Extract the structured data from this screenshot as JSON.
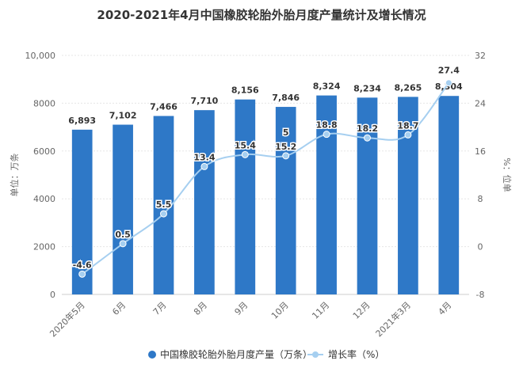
{
  "chart_data": {
    "type": "bar",
    "title": "2020-2021年4月中国橡胶轮胎外胎月度产量统计及增长情况",
    "categories": [
      "2020年5月",
      "6月",
      "7月",
      "8月",
      "9月",
      "10月",
      "11月",
      "12月",
      "2021年3月",
      "4月"
    ],
    "series": [
      {
        "name": "中国橡胶轮胎外胎月度产量（万条）",
        "type": "bar",
        "axis": "left",
        "color": "#2e78c7",
        "values": [
          6893,
          7102,
          7466,
          7710,
          8156,
          7846,
          8324,
          8234,
          8265,
          8304
        ],
        "labels": [
          "6,893",
          "7,102",
          "7,466",
          "7,710",
          "8,156",
          "7,846",
          "8,324",
          "8,234",
          "8,265",
          "8,304"
        ]
      },
      {
        "name": "增长率（%）",
        "type": "line",
        "axis": "right",
        "color": "#a6cff0",
        "values": [
          -4.6,
          0.5,
          5.5,
          13.4,
          15.4,
          15.2,
          18.8,
          18.2,
          18.7,
          27.4
        ],
        "labels": [
          "-4.6",
          "0.5",
          "5.5",
          "13.4",
          "15.4",
          "15.2",
          "18.8",
          "18.2",
          "18.7",
          "27.4"
        ]
      }
    ],
    "ylabel": "单位：万条",
    "y2label": "%：位单",
    "ylim": [
      0,
      10000
    ],
    "y2lim": [
      -8,
      32
    ],
    "yticks": [
      "0",
      "2000",
      "4000",
      "6000",
      "8000",
      "10,000"
    ],
    "y2ticks": [
      "-8",
      "0",
      "8",
      "16",
      "24",
      "32"
    ],
    "stray_label": "5",
    "grid": true,
    "legend_position": "bottom"
  }
}
